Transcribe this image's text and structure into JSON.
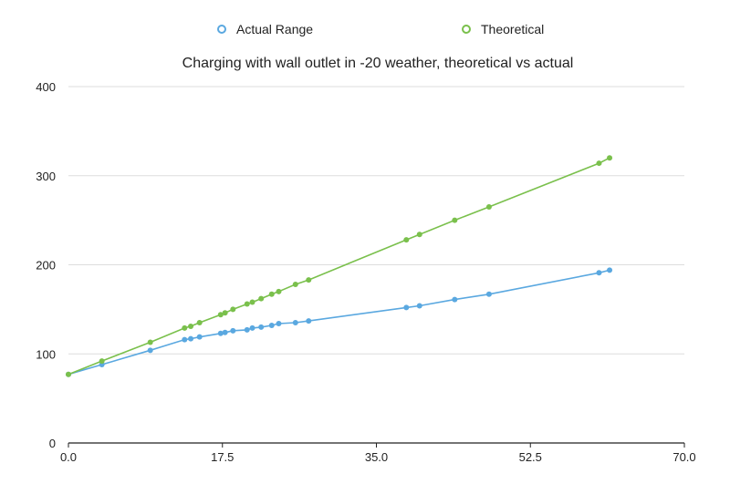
{
  "chart_data": {
    "type": "scatter",
    "title": "Charging with wall outlet in -20 weather, theoretical vs actual",
    "xlabel": "",
    "ylabel": "",
    "xlim": [
      0,
      70
    ],
    "ylim": [
      0,
      400
    ],
    "x_ticks": [
      "0.0",
      "17.5",
      "35.0",
      "52.5",
      "70.0"
    ],
    "y_ticks": [
      "0",
      "100",
      "200",
      "300",
      "400"
    ],
    "grid": "horizontal",
    "legend_position": "top",
    "series": [
      {
        "name": "Actual Range",
        "color": "#5aa8e0",
        "marker": "circle",
        "points": [
          [
            0,
            77
          ],
          [
            3.8,
            88
          ],
          [
            9.3,
            104
          ],
          [
            13.2,
            116
          ],
          [
            13.9,
            117
          ],
          [
            14.9,
            119
          ],
          [
            17.3,
            123
          ],
          [
            17.8,
            124
          ],
          [
            18.7,
            126
          ],
          [
            20.3,
            127
          ],
          [
            20.9,
            129
          ],
          [
            21.9,
            130
          ],
          [
            23.1,
            132
          ],
          [
            23.9,
            134
          ],
          [
            25.8,
            135
          ],
          [
            27.3,
            137
          ],
          [
            38.4,
            152
          ],
          [
            39.9,
            154
          ],
          [
            43.9,
            161
          ],
          [
            47.8,
            167
          ],
          [
            60.3,
            191
          ],
          [
            61.5,
            194
          ]
        ]
      },
      {
        "name": "Theoretical",
        "color": "#7ac04c",
        "marker": "circle",
        "points": [
          [
            0,
            77
          ],
          [
            3.8,
            92
          ],
          [
            9.3,
            113
          ],
          [
            13.2,
            129
          ],
          [
            13.9,
            131
          ],
          [
            14.9,
            135
          ],
          [
            17.3,
            144
          ],
          [
            17.8,
            146
          ],
          [
            18.7,
            150
          ],
          [
            20.3,
            156
          ],
          [
            20.9,
            158
          ],
          [
            21.9,
            162
          ],
          [
            23.1,
            167
          ],
          [
            23.9,
            170
          ],
          [
            25.8,
            178
          ],
          [
            27.3,
            183
          ],
          [
            38.4,
            228
          ],
          [
            39.9,
            234
          ],
          [
            43.9,
            250
          ],
          [
            47.8,
            265
          ],
          [
            60.3,
            314
          ],
          [
            61.5,
            320
          ]
        ]
      }
    ]
  }
}
